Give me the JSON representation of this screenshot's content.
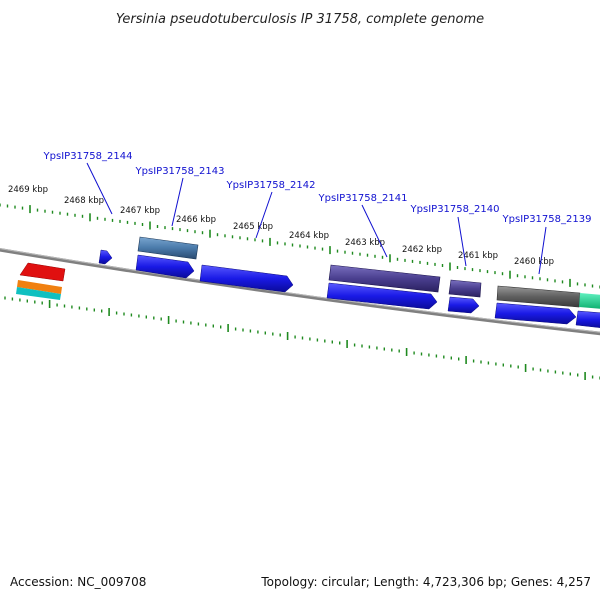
{
  "title": "Yersinia pseudotuberculosis IP 31758, complete genome",
  "footer": {
    "accession": "Accession: NC_009708",
    "summary": "Topology: circular; Length: 4,723,306 bp; Genes: 4,257"
  },
  "kbp_labels": [
    "2469 kbp",
    "2468 kbp",
    "2467 kbp",
    "2466 kbp",
    "2465 kbp",
    "2464 kbp",
    "2463 kbp",
    "2462 kbp",
    "2461 kbp",
    "2460 kbp"
  ],
  "gene_labels": [
    "YpsIP31758_2144",
    "YpsIP31758_2143",
    "YpsIP31758_2142",
    "YpsIP31758_2141",
    "YpsIP31758_2140",
    "YpsIP31758_2139"
  ],
  "colors": {
    "backbone": "#808080",
    "tick": "#1f8a1f",
    "label": "#1010d0",
    "cds": "#1a1ae6",
    "gene_steel": "#4a7aaa",
    "gene_purple": "#4a3f8f",
    "gene_gray": "#606060",
    "gene_teal": "#20d090",
    "legend_red": "#e01010",
    "legend_orange": "#f08010",
    "legend_cyan": "#10c0c0"
  }
}
